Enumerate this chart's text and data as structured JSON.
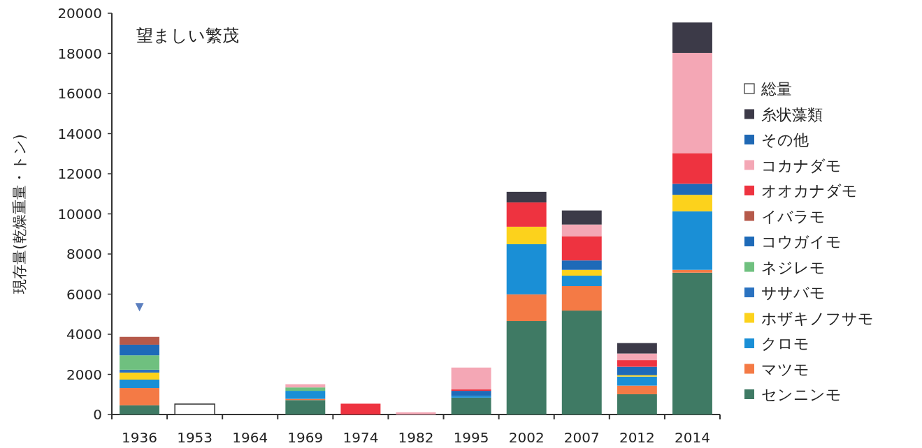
{
  "chart_data": {
    "type": "bar",
    "stacked": true,
    "title": "望ましい繁茂",
    "ylabel": "現存量(乾燥重量・トン)",
    "categories": [
      "1936",
      "1953",
      "1964",
      "1969",
      "1974",
      "1982",
      "1995",
      "2002",
      "2007",
      "2012",
      "2014"
    ],
    "ylim": [
      0,
      20000
    ],
    "yticks": [
      0,
      2000,
      4000,
      6000,
      8000,
      10000,
      12000,
      14000,
      16000,
      18000,
      20000
    ],
    "grid": false,
    "legend": "right",
    "series": [
      {
        "name": "センニンモ",
        "color": "#3f7a64",
        "values": [
          460,
          null,
          null,
          720,
          null,
          null,
          840,
          4660,
          5180,
          1010,
          7070
        ]
      },
      {
        "name": "マツモ",
        "color": "#f47a45",
        "values": [
          860,
          null,
          null,
          60,
          null,
          null,
          null,
          1330,
          1220,
          430,
          140
        ]
      },
      {
        "name": "クロモ",
        "color": "#1a8fd6",
        "values": [
          420,
          null,
          null,
          400,
          null,
          null,
          90,
          2500,
          520,
          450,
          2920
        ]
      },
      {
        "name": "ホザキノフサモ",
        "color": "#fcd21c",
        "values": [
          350,
          null,
          null,
          null,
          null,
          null,
          null,
          870,
          290,
          70,
          820
        ]
      },
      {
        "name": "ササバモ",
        "color": "#2a72c0",
        "values": [
          140,
          null,
          null,
          null,
          null,
          null,
          null,
          null,
          null,
          null,
          null
        ]
      },
      {
        "name": "ネジレモ",
        "color": "#6fc07f",
        "values": [
          720,
          null,
          null,
          170,
          null,
          null,
          null,
          null,
          null,
          null,
          null
        ]
      },
      {
        "name": "コウガイモ",
        "color": "#1e6ab8",
        "values": [
          530,
          null,
          null,
          null,
          null,
          null,
          250,
          null,
          470,
          420,
          550
        ]
      },
      {
        "name": "イバラモ",
        "color": "#b5594a",
        "values": [
          390,
          null,
          null,
          null,
          null,
          null,
          null,
          null,
          null,
          null,
          null
        ]
      },
      {
        "name": "オオカナダモ",
        "color": "#ee3340",
        "values": [
          null,
          null,
          null,
          null,
          540,
          null,
          70,
          1210,
          1210,
          330,
          1530
        ]
      },
      {
        "name": "コカナダモ",
        "color": "#f4a7b5",
        "values": [
          null,
          null,
          null,
          160,
          null,
          110,
          1090,
          null,
          580,
          330,
          4990
        ]
      },
      {
        "name": "その他",
        "color": "#1f68b4",
        "values": [
          null,
          null,
          null,
          null,
          null,
          null,
          null,
          null,
          null,
          null,
          null
        ]
      },
      {
        "name": "糸状藻類",
        "color": "#3c3a48",
        "values": [
          null,
          null,
          null,
          null,
          null,
          null,
          null,
          530,
          700,
          520,
          1520
        ]
      },
      {
        "name": "総量",
        "color": "#ffffff",
        "values": [
          null,
          520,
          null,
          null,
          null,
          null,
          null,
          null,
          null,
          null,
          null
        ]
      },
      {
        "type": "scatter",
        "marker": "triangle",
        "color": "#5b7fbf",
        "values": [
          5350,
          null,
          null,
          null,
          null,
          null,
          null,
          null,
          null,
          null,
          null
        ]
      }
    ]
  }
}
